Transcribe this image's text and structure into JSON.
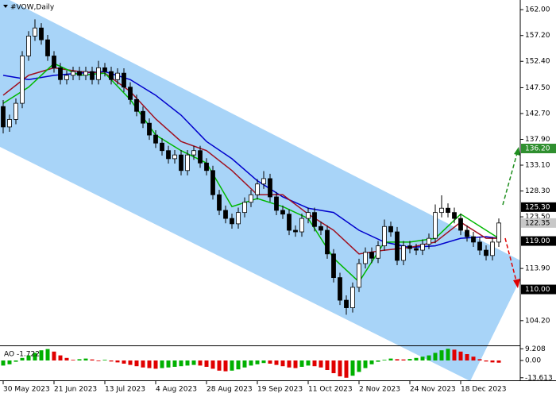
{
  "chart_data": [
    {
      "type": "candlestick",
      "title": "#VOW,Daily",
      "ylim": [
        99.6,
        163.8
      ],
      "yticks": [
        {
          "value": 162,
          "label": "162.00"
        },
        {
          "value": 157.2,
          "label": "157.20"
        },
        {
          "value": 152.4,
          "label": "152.40"
        },
        {
          "value": 147.5,
          "label": "147.50"
        },
        {
          "value": 142.7,
          "label": "142.70"
        },
        {
          "value": 137.9,
          "label": "137.90"
        },
        {
          "value": 133.1,
          "label": "133.10"
        },
        {
          "value": 128.3,
          "label": "128.30"
        },
        {
          "value": 123.5,
          "label": "123.50"
        },
        {
          "value": 113.9,
          "label": "113.90"
        },
        {
          "value": 104.2,
          "label": "104.20"
        }
      ],
      "xticks": [
        {
          "value": 0,
          "label": "30 May 2023"
        },
        {
          "value": 8,
          "label": "21 Jun 2023"
        },
        {
          "value": 16,
          "label": "13 Jul 2023"
        },
        {
          "value": 24,
          "label": "4 Aug 2023"
        },
        {
          "value": 32,
          "label": "28 Aug 2023"
        },
        {
          "value": 40,
          "label": "19 Sep 2023"
        },
        {
          "value": 48,
          "label": "11 Oct 2023"
        },
        {
          "value": 56,
          "label": "2 Nov 2023"
        },
        {
          "value": 64,
          "label": "24 Nov 2023"
        },
        {
          "value": 72,
          "label": "18 Dec 2023"
        }
      ],
      "up_color": "#ffffff",
      "down_color": "#000000",
      "candles": [
        [
          144.0,
          145.2,
          139.0,
          140.2
        ],
        [
          140.2,
          142.5,
          139.3,
          141.6
        ],
        [
          141.6,
          145.5,
          140.7,
          144.6
        ],
        [
          144.6,
          154.3,
          143.7,
          153.4
        ],
        [
          153.4,
          158.0,
          152.5,
          157.1
        ],
        [
          157.1,
          160.2,
          156.2,
          158.6
        ],
        [
          158.6,
          159.5,
          155.5,
          156.4
        ],
        [
          156.4,
          157.3,
          152.5,
          153.4
        ],
        [
          153.4,
          154.3,
          150.3,
          151.2
        ],
        [
          151.2,
          152.1,
          148.1,
          149.0
        ],
        [
          149.0,
          150.7,
          148.1,
          149.8
        ],
        [
          149.8,
          151.4,
          148.9,
          150.5
        ],
        [
          150.5,
          151.4,
          148.9,
          149.8
        ],
        [
          149.8,
          151.4,
          148.9,
          150.5
        ],
        [
          150.5,
          151.4,
          148.1,
          149.0
        ],
        [
          149.0,
          152.5,
          148.1,
          151.2
        ],
        [
          151.2,
          152.1,
          149.6,
          150.5
        ],
        [
          150.5,
          151.4,
          148.1,
          149.0
        ],
        [
          149.0,
          151.1,
          148.1,
          150.2
        ],
        [
          150.2,
          151.1,
          146.7,
          147.6
        ],
        [
          147.6,
          148.5,
          144.4,
          145.3
        ],
        [
          145.3,
          146.2,
          142.2,
          143.1
        ],
        [
          143.1,
          144.0,
          140.0,
          140.9
        ],
        [
          140.9,
          141.8,
          137.8,
          138.7
        ],
        [
          138.7,
          139.6,
          136.3,
          137.2
        ],
        [
          137.2,
          138.1,
          134.9,
          135.8
        ],
        [
          135.8,
          136.7,
          133.4,
          134.3
        ],
        [
          134.3,
          135.9,
          133.4,
          135.0
        ],
        [
          135.0,
          135.9,
          131.2,
          132.1
        ],
        [
          132.1,
          135.9,
          131.2,
          135.0
        ],
        [
          135.0,
          136.7,
          134.1,
          135.8
        ],
        [
          135.8,
          136.7,
          132.6,
          133.5
        ],
        [
          133.5,
          134.4,
          131.2,
          132.1
        ],
        [
          132.1,
          133.0,
          126.7,
          127.6
        ],
        [
          127.6,
          128.5,
          123.8,
          124.7
        ],
        [
          124.7,
          125.6,
          122.3,
          123.2
        ],
        [
          123.2,
          124.1,
          121.3,
          122.2
        ],
        [
          122.2,
          125.2,
          121.3,
          124.3
        ],
        [
          124.3,
          127.1,
          123.4,
          126.2
        ],
        [
          126.2,
          128.5,
          125.3,
          127.6
        ],
        [
          127.6,
          130.5,
          126.7,
          129.6
        ],
        [
          129.6,
          132.0,
          128.7,
          130.6
        ],
        [
          130.6,
          131.5,
          126.3,
          127.2
        ],
        [
          127.2,
          128.1,
          123.8,
          124.7
        ],
        [
          124.7,
          125.6,
          123.1,
          124.0
        ],
        [
          124.0,
          124.9,
          120.1,
          121.0
        ],
        [
          121.0,
          121.9,
          119.8,
          120.7
        ],
        [
          120.7,
          124.1,
          119.8,
          123.2
        ],
        [
          123.2,
          125.2,
          122.3,
          124.3
        ],
        [
          124.3,
          125.2,
          120.8,
          121.7
        ],
        [
          121.7,
          122.6,
          120.1,
          121.0
        ],
        [
          121.0,
          121.9,
          115.7,
          116.6
        ],
        [
          116.6,
          117.5,
          111.3,
          112.2
        ],
        [
          112.2,
          113.1,
          107.1,
          108.0
        ],
        [
          108.0,
          108.9,
          105.3,
          106.6
        ],
        [
          106.6,
          111.3,
          105.7,
          110.4
        ],
        [
          110.4,
          115.7,
          109.5,
          114.8
        ],
        [
          114.8,
          117.8,
          113.9,
          116.9
        ],
        [
          116.9,
          117.8,
          114.9,
          115.8
        ],
        [
          115.8,
          119.0,
          114.9,
          118.1
        ],
        [
          118.1,
          123.0,
          117.2,
          121.7
        ],
        [
          121.7,
          122.6,
          119.8,
          120.7
        ],
        [
          120.7,
          121.6,
          114.5,
          115.4
        ],
        [
          115.4,
          119.0,
          114.5,
          118.1
        ],
        [
          118.1,
          119.0,
          116.7,
          117.6
        ],
        [
          117.6,
          118.5,
          116.4,
          117.3
        ],
        [
          117.3,
          119.3,
          116.4,
          118.4
        ],
        [
          118.4,
          120.4,
          117.5,
          119.5
        ],
        [
          119.5,
          125.8,
          118.6,
          124.3
        ],
        [
          124.3,
          127.5,
          123.4,
          125.1
        ],
        [
          125.1,
          126.0,
          123.4,
          124.3
        ],
        [
          124.3,
          125.2,
          122.3,
          123.2
        ],
        [
          123.2,
          124.1,
          120.1,
          121.0
        ],
        [
          121.0,
          121.9,
          118.9,
          119.8
        ],
        [
          119.8,
          120.7,
          117.9,
          118.8
        ],
        [
          118.8,
          119.7,
          116.4,
          117.3
        ],
        [
          117.3,
          118.2,
          115.4,
          116.3
        ],
        [
          116.3,
          119.7,
          115.4,
          118.8
        ],
        [
          118.8,
          123.2,
          117.9,
          122.35
        ]
      ],
      "series": [
        {
          "color": "#0000cc",
          "x": [
            0,
            4,
            8,
            12,
            16,
            20,
            24,
            28,
            32,
            36,
            40,
            44,
            48,
            52,
            56,
            60,
            64,
            68,
            72,
            76,
            78
          ],
          "values": [
            149.8,
            149.0,
            149.8,
            150.2,
            150.5,
            149.0,
            146.1,
            142.4,
            137.5,
            134.3,
            130.2,
            127.2,
            125.1,
            124.3,
            121.0,
            118.8,
            117.8,
            118.1,
            119.5,
            119.8,
            119.5
          ]
        },
        {
          "color": "#a01020",
          "x": [
            0,
            4,
            8,
            12,
            16,
            20,
            24,
            28,
            32,
            36,
            40,
            44,
            48,
            52,
            56,
            60,
            64,
            68,
            72,
            76,
            78
          ],
          "values": [
            146.1,
            149.8,
            151.2,
            150.5,
            150.2,
            146.8,
            141.7,
            137.5,
            135.8,
            132.1,
            127.6,
            127.6,
            124.0,
            121.0,
            116.6,
            117.3,
            117.8,
            118.8,
            122.5,
            119.5,
            119.5
          ]
        },
        {
          "color": "#00b800",
          "x": [
            0,
            4,
            8,
            12,
            16,
            20,
            24,
            28,
            32,
            36,
            40,
            44,
            48,
            52,
            56,
            60,
            64,
            68,
            72,
            76,
            78
          ],
          "values": [
            144.6,
            147.6,
            152.0,
            149.8,
            150.2,
            145.3,
            138.7,
            135.8,
            133.5,
            125.4,
            126.9,
            125.4,
            123.2,
            115.8,
            111.4,
            118.8,
            118.8,
            119.5,
            124.0,
            121.0,
            119.5
          ]
        }
      ],
      "levels": [
        {
          "value": 136.2,
          "label": "136.20",
          "color": "#2f8f2f",
          "text_color": "#ffffff"
        },
        {
          "value": 125.3,
          "label": "125.30",
          "color": "#000000",
          "text_color": "#ffffff"
        },
        {
          "value": 122.35,
          "label": "122.35",
          "color": "#c8c8c8",
          "text_color": "#000000"
        },
        {
          "value": 119,
          "label": "119.00",
          "color": "#000000",
          "text_color": "#ffffff"
        },
        {
          "value": 110,
          "label": "110.00",
          "color": "#000000",
          "text_color": "#ffffff"
        }
      ],
      "zones": [
        {
          "from": 136.2,
          "to": 125.3,
          "color": "#1f8f1f",
          "opacity": 0.6
        },
        {
          "from": 119,
          "to": 110,
          "color": "#f45c5c",
          "opacity": 0.55
        }
      ]
    },
    {
      "type": "bar",
      "title": "AO -1.722",
      "ylim": [
        -15,
        10
      ],
      "yticks": [
        {
          "value": 9.208,
          "label": "9.208"
        },
        {
          "value": 0,
          "label": "0.00"
        },
        {
          "value": -13.613,
          "label": "-13.613"
        }
      ],
      "up_color": "#00b000",
      "down_color": "#e00000",
      "values": [
        -4,
        -3,
        -1,
        2,
        4,
        6,
        8,
        9,
        7,
        4,
        2,
        0.5,
        1,
        1.5,
        0.8,
        -0.5,
        0.5,
        -0.8,
        -1.5,
        -2.5,
        -3.5,
        -4.5,
        -5.5,
        -6,
        -6.5,
        -6,
        -5.5,
        -5,
        -4.5,
        -4,
        -3.5,
        -4,
        -5,
        -6.5,
        -8,
        -8.5,
        -8,
        -7,
        -5.5,
        -4,
        -3,
        -2,
        -2.5,
        -3.5,
        -4.5,
        -5.5,
        -6,
        -5,
        -4,
        -4.5,
        -5.5,
        -7.5,
        -10,
        -12.5,
        -13.6,
        -12,
        -9,
        -6,
        -3,
        -1,
        0.5,
        1.5,
        1,
        0.8,
        1.2,
        2,
        3,
        4,
        6,
        8,
        9.2,
        8.5,
        7,
        5,
        3,
        1,
        -0.8,
        -1.5,
        -1.722
      ]
    }
  ]
}
